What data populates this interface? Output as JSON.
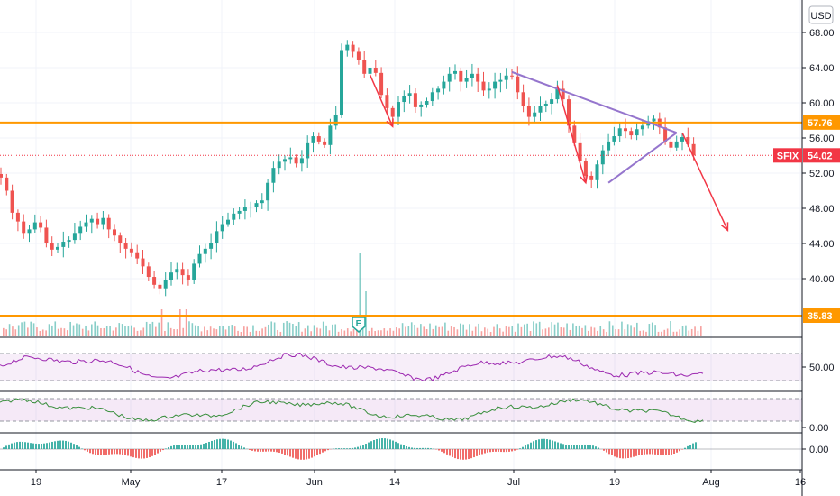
{
  "chart_data": [
    {
      "type": "candlestick",
      "symbol": "SFIX",
      "currency": "USD",
      "last_price": "54.02",
      "y_ticks": [
        "68.00",
        "64.00",
        "60.00",
        "56.00",
        "52.00",
        "48.00",
        "44.00",
        "40.00"
      ],
      "ylim": [
        35,
        70
      ],
      "x_ticks": [
        "19",
        "May",
        "17",
        "Jun",
        "14",
        "Jul",
        "19",
        "Aug",
        "16"
      ],
      "horizontal_levels": [
        {
          "label": "57.76",
          "value": 57.76,
          "color": "#ff9800"
        },
        {
          "label": "35.83",
          "value": 35.83,
          "color": "#ff9800"
        }
      ],
      "current_price_line": {
        "value": 54.02,
        "color": "#f23645"
      },
      "trendlines": [
        {
          "from": {
            "day": 90,
            "price": 63.5
          },
          "to": {
            "day": 119,
            "price": 56.6
          },
          "color": "#9575cd"
        },
        {
          "from": {
            "day": 107,
            "price": 50.9
          },
          "to": {
            "day": 119,
            "price": 56.6
          },
          "color": "#9575cd"
        }
      ],
      "arrows": [
        {
          "from": {
            "day": 65,
            "price": 63.2
          },
          "to": {
            "day": 69,
            "price": 57.3
          },
          "color": "#f23645"
        },
        {
          "from": {
            "day": 98,
            "price": 62.0
          },
          "to": {
            "day": 103,
            "price": 50.9
          },
          "color": "#f23645"
        },
        {
          "from": {
            "day": 120,
            "price": 56.6
          },
          "to": {
            "day": 128,
            "price": 45.5
          },
          "color": "#f23645"
        }
      ],
      "closes": [
        [
          0,
          51.5
        ],
        [
          1,
          50.0
        ],
        [
          2,
          47.5
        ],
        [
          3,
          46.5
        ],
        [
          4,
          45.2
        ],
        [
          5,
          45.6
        ],
        [
          6,
          46.4
        ],
        [
          7,
          45.8
        ],
        [
          8,
          44.0
        ],
        [
          9,
          43.3
        ],
        [
          10,
          43.6
        ],
        [
          11,
          44.2
        ],
        [
          12,
          44.4
        ],
        [
          13,
          45.2
        ],
        [
          14,
          45.9
        ],
        [
          15,
          46.4
        ],
        [
          16,
          46.8
        ],
        [
          17,
          46.2
        ],
        [
          18,
          46.9
        ],
        [
          19,
          45.6
        ],
        [
          20,
          44.9
        ],
        [
          21,
          44.1
        ],
        [
          22,
          43.4
        ],
        [
          23,
          43.0
        ],
        [
          24,
          42.3
        ],
        [
          25,
          41.4
        ],
        [
          26,
          40.2
        ],
        [
          27,
          39.3
        ],
        [
          28,
          38.9
        ],
        [
          29,
          39.8
        ],
        [
          30,
          40.7
        ],
        [
          31,
          41.1
        ],
        [
          32,
          40.4
        ],
        [
          33,
          39.9
        ],
        [
          34,
          41.7
        ],
        [
          35,
          42.8
        ],
        [
          36,
          43.4
        ],
        [
          37,
          44.1
        ],
        [
          38,
          45.4
        ],
        [
          39,
          46.2
        ],
        [
          40,
          46.7
        ],
        [
          41,
          47.4
        ],
        [
          42,
          47.7
        ],
        [
          43,
          48.1
        ],
        [
          44,
          48.2
        ],
        [
          45,
          48.6
        ],
        [
          46,
          48.9
        ],
        [
          47,
          50.9
        ],
        [
          48,
          52.6
        ],
        [
          49,
          53.3
        ],
        [
          50,
          53.6
        ],
        [
          51,
          53.8
        ],
        [
          52,
          53.1
        ],
        [
          53,
          53.7
        ],
        [
          54,
          55.4
        ],
        [
          55,
          56.2
        ],
        [
          56,
          55.6
        ],
        [
          57,
          55.2
        ],
        [
          58,
          57.4
        ],
        [
          59,
          58.6
        ],
        [
          60,
          66.0
        ],
        [
          61,
          66.6
        ],
        [
          62,
          65.8
        ],
        [
          63,
          64.9
        ],
        [
          64,
          63.3
        ],
        [
          65,
          64.0
        ],
        [
          66,
          63.4
        ],
        [
          67,
          60.9
        ],
        [
          68,
          59.4
        ],
        [
          69,
          58.4
        ],
        [
          70,
          60.1
        ],
        [
          71,
          60.8
        ],
        [
          72,
          61.1
        ],
        [
          73,
          59.5
        ],
        [
          74,
          59.8
        ],
        [
          75,
          60.2
        ],
        [
          76,
          61.2
        ],
        [
          77,
          61.6
        ],
        [
          78,
          62.4
        ],
        [
          79,
          63.3
        ],
        [
          80,
          63.6
        ],
        [
          81,
          62.4
        ],
        [
          82,
          62.8
        ],
        [
          83,
          63.3
        ],
        [
          84,
          62.4
        ],
        [
          85,
          61.4
        ],
        [
          86,
          61.6
        ],
        [
          87,
          62.4
        ],
        [
          88,
          62.6
        ],
        [
          89,
          63.1
        ],
        [
          90,
          63.0
        ],
        [
          91,
          61.2
        ],
        [
          92,
          59.6
        ],
        [
          93,
          58.4
        ],
        [
          94,
          58.9
        ],
        [
          95,
          59.6
        ],
        [
          96,
          59.9
        ],
        [
          97,
          60.4
        ],
        [
          98,
          61.6
        ],
        [
          99,
          60.4
        ],
        [
          100,
          57.4
        ],
        [
          101,
          55.4
        ],
        [
          102,
          53.4
        ],
        [
          103,
          51.7
        ],
        [
          104,
          51.2
        ],
        [
          105,
          53.0
        ],
        [
          106,
          54.6
        ],
        [
          107,
          55.6
        ],
        [
          108,
          56.2
        ],
        [
          109,
          57.1
        ],
        [
          110,
          56.8
        ],
        [
          111,
          56.3
        ],
        [
          112,
          57.0
        ],
        [
          113,
          57.4
        ],
        [
          114,
          57.9
        ],
        [
          115,
          58.2
        ],
        [
          116,
          57.2
        ],
        [
          117,
          55.6
        ],
        [
          118,
          54.9
        ],
        [
          119,
          55.6
        ],
        [
          120,
          56.1
        ],
        [
          121,
          55.3
        ],
        [
          122,
          54.02
        ]
      ],
      "volume_marker": "E",
      "rsi_panel": {
        "ticks": [
          "50.00"
        ],
        "line_color": "#9c27b0",
        "band_color": "#9c27b0"
      },
      "stoch_panel": {
        "ticks": [
          "0.00"
        ],
        "line_color": "#388e3c",
        "band_color": "#9c27b0"
      },
      "macd_panel": {
        "ticks": [
          "0.00"
        ],
        "up_color": "#26a69a",
        "down_color": "#ef5350"
      },
      "grid": true
    }
  ]
}
